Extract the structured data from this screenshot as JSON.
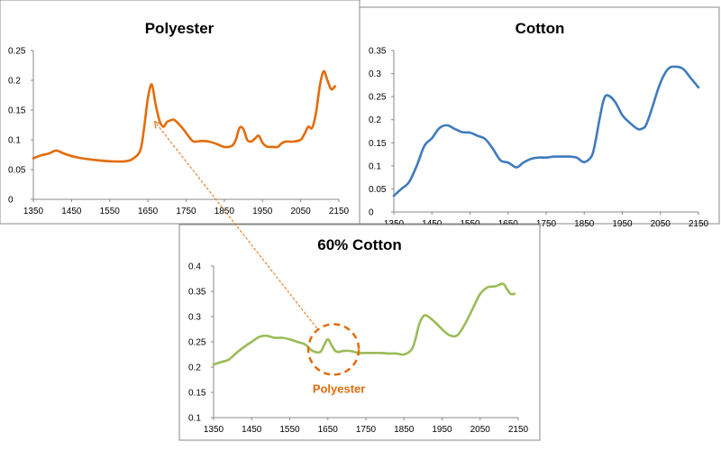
{
  "chart_data": [
    {
      "type": "line",
      "title": "Polyester",
      "xlabel": "",
      "ylabel": "",
      "xlim": [
        1350,
        2150
      ],
      "ylim": [
        0,
        0.25
      ],
      "xticks": [
        "1350",
        "1450",
        "1550",
        "1650",
        "1750",
        "1850",
        "1950",
        "2050",
        "2150"
      ],
      "yticks": [
        "0",
        "0.05",
        "0.1",
        "0.15",
        "0.2",
        "0.25"
      ],
      "grid": false,
      "series": [
        {
          "color": "#E36C09",
          "x": [
            1350,
            1370,
            1390,
            1410,
            1430,
            1460,
            1500,
            1550,
            1590,
            1610,
            1630,
            1640,
            1650,
            1660,
            1670,
            1680,
            1690,
            1700,
            1710,
            1720,
            1740,
            1760,
            1770,
            1790,
            1810,
            1830,
            1850,
            1870,
            1880,
            1890,
            1900,
            1910,
            1920,
            1930,
            1940,
            1950,
            1960,
            1970,
            1980,
            1990,
            2000,
            2010,
            2020,
            2030,
            2050,
            2060,
            2070,
            2080,
            2090,
            2100,
            2110,
            2120,
            2130,
            2140
          ],
          "y": [
            0.069,
            0.074,
            0.077,
            0.082,
            0.077,
            0.071,
            0.067,
            0.064,
            0.064,
            0.068,
            0.082,
            0.12,
            0.17,
            0.193,
            0.16,
            0.133,
            0.122,
            0.13,
            0.133,
            0.133,
            0.12,
            0.103,
            0.097,
            0.098,
            0.097,
            0.093,
            0.088,
            0.09,
            0.1,
            0.12,
            0.118,
            0.1,
            0.097,
            0.102,
            0.107,
            0.095,
            0.089,
            0.088,
            0.088,
            0.088,
            0.094,
            0.097,
            0.097,
            0.097,
            0.1,
            0.11,
            0.122,
            0.12,
            0.145,
            0.19,
            0.215,
            0.2,
            0.185,
            0.19
          ]
        }
      ]
    },
    {
      "type": "line",
      "title": "Cotton",
      "xlabel": "",
      "ylabel": "",
      "xlim": [
        1350,
        2150
      ],
      "ylim": [
        0,
        0.35
      ],
      "xticks": [
        "1350",
        "1450",
        "1550",
        "1650",
        "1750",
        "1850",
        "1950",
        "2050",
        "2150"
      ],
      "yticks": [
        "0",
        "0.05",
        "0.1",
        "0.15",
        "0.2",
        "0.25",
        "0.3",
        "0.35"
      ],
      "grid": false,
      "series": [
        {
          "color": "#3F7BBE",
          "x": [
            1350,
            1370,
            1390,
            1410,
            1430,
            1450,
            1470,
            1490,
            1510,
            1530,
            1550,
            1570,
            1590,
            1610,
            1630,
            1650,
            1670,
            1680,
            1690,
            1710,
            1730,
            1750,
            1770,
            1790,
            1810,
            1830,
            1850,
            1870,
            1880,
            1890,
            1900,
            1910,
            1930,
            1950,
            1970,
            1990,
            2000,
            2010,
            2020,
            2030,
            2050,
            2070,
            2090,
            2110,
            2130,
            2150
          ],
          "y": [
            0.035,
            0.05,
            0.065,
            0.1,
            0.143,
            0.16,
            0.182,
            0.188,
            0.18,
            0.173,
            0.172,
            0.165,
            0.158,
            0.137,
            0.112,
            0.107,
            0.097,
            0.1,
            0.107,
            0.115,
            0.118,
            0.118,
            0.12,
            0.12,
            0.12,
            0.118,
            0.108,
            0.122,
            0.155,
            0.2,
            0.24,
            0.253,
            0.24,
            0.21,
            0.193,
            0.18,
            0.18,
            0.185,
            0.205,
            0.23,
            0.28,
            0.31,
            0.315,
            0.31,
            0.29,
            0.27
          ]
        }
      ]
    },
    {
      "type": "line",
      "title": "60% Cotton",
      "xlabel": "",
      "ylabel": "",
      "xlim": [
        1350,
        2150
      ],
      "ylim": [
        0.1,
        0.4
      ],
      "xticks": [
        "1350",
        "1450",
        "1550",
        "1650",
        "1750",
        "1850",
        "1950",
        "2050",
        "2150"
      ],
      "yticks": [
        "0.1",
        "0.15",
        "0.2",
        "0.25",
        "0.3",
        "0.35",
        "0.4"
      ],
      "grid": false,
      "series": [
        {
          "color": "#9BBB59",
          "x": [
            1350,
            1370,
            1390,
            1410,
            1430,
            1450,
            1470,
            1490,
            1510,
            1530,
            1550,
            1570,
            1590,
            1610,
            1630,
            1640,
            1650,
            1660,
            1670,
            1680,
            1690,
            1710,
            1730,
            1750,
            1770,
            1790,
            1810,
            1830,
            1850,
            1870,
            1880,
            1890,
            1900,
            1910,
            1930,
            1950,
            1970,
            1990,
            2010,
            2030,
            2050,
            2070,
            2090,
            2110,
            2120,
            2130,
            2140
          ],
          "y": [
            0.205,
            0.21,
            0.215,
            0.228,
            0.24,
            0.25,
            0.26,
            0.262,
            0.258,
            0.258,
            0.255,
            0.25,
            0.245,
            0.232,
            0.23,
            0.243,
            0.255,
            0.243,
            0.232,
            0.23,
            0.232,
            0.232,
            0.228,
            0.228,
            0.228,
            0.228,
            0.227,
            0.227,
            0.225,
            0.235,
            0.255,
            0.285,
            0.3,
            0.302,
            0.29,
            0.275,
            0.263,
            0.263,
            0.285,
            0.315,
            0.345,
            0.358,
            0.36,
            0.365,
            0.355,
            0.345,
            0.345
          ]
        }
      ],
      "annotation": {
        "label": "Polyester",
        "color": "#E36C09",
        "x": 1665,
        "y": 0.235
      }
    }
  ]
}
